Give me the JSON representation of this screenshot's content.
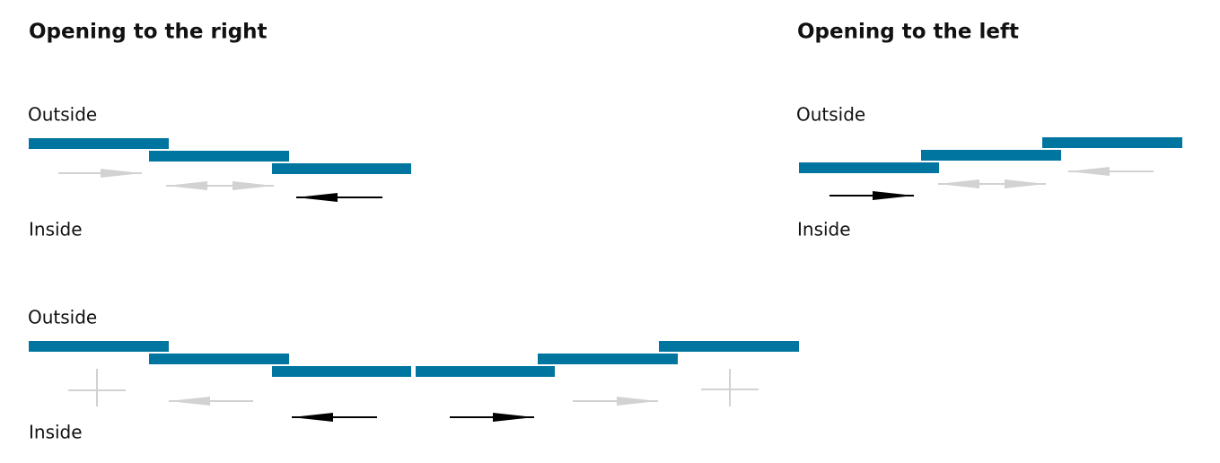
{
  "headings": [
    "Opening to the right",
    "Opening to the left"
  ],
  "panels": [
    {
      "outside": "Outside",
      "inside": "Inside"
    },
    {
      "outside": "Outside",
      "inside": "Inside"
    },
    {
      "outside": "Outside",
      "inside": "Inside"
    }
  ]
}
